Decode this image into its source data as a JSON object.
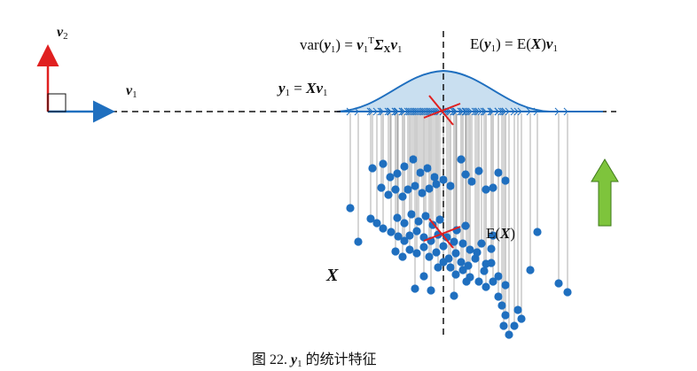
{
  "labels": {
    "v2": "v",
    "v2_sub": "2",
    "v1": "v",
    "v1_sub": "1",
    "var_left": "var(",
    "var_y": "y",
    "var_y_sub": "1",
    "var_mid": ") = ",
    "var_v": "v",
    "var_v_sub": "1",
    "var_T": "T",
    "var_sigma": "Σ",
    "var_sigma_sub": "X",
    "var_v2": "v",
    "var_v2_sub": "1",
    "mean_left": "E(",
    "mean_y": "y",
    "mean_y_sub": "1",
    "mean_mid": ") = E(",
    "mean_X": "X",
    "mean_right": ")",
    "mean_v": "v",
    "mean_v_sub": "1",
    "proj_y": "y",
    "proj_y_sub": "1",
    "proj_eq": " = ",
    "proj_X": "X",
    "proj_v": "v",
    "proj_v_sub": "1",
    "ex_left": "E(",
    "ex_X": "X",
    "ex_right": ")",
    "X_label": "X"
  },
  "caption": {
    "prefix": "图 22. ",
    "y": "y",
    "y_sub": "1",
    "suffix": " 的统计特征"
  },
  "colors": {
    "blue": "#1f6fbf",
    "red": "#e02020",
    "green": "#7ec43c",
    "gauss_fill": "#c9dff0",
    "guide": "#999999"
  }
}
